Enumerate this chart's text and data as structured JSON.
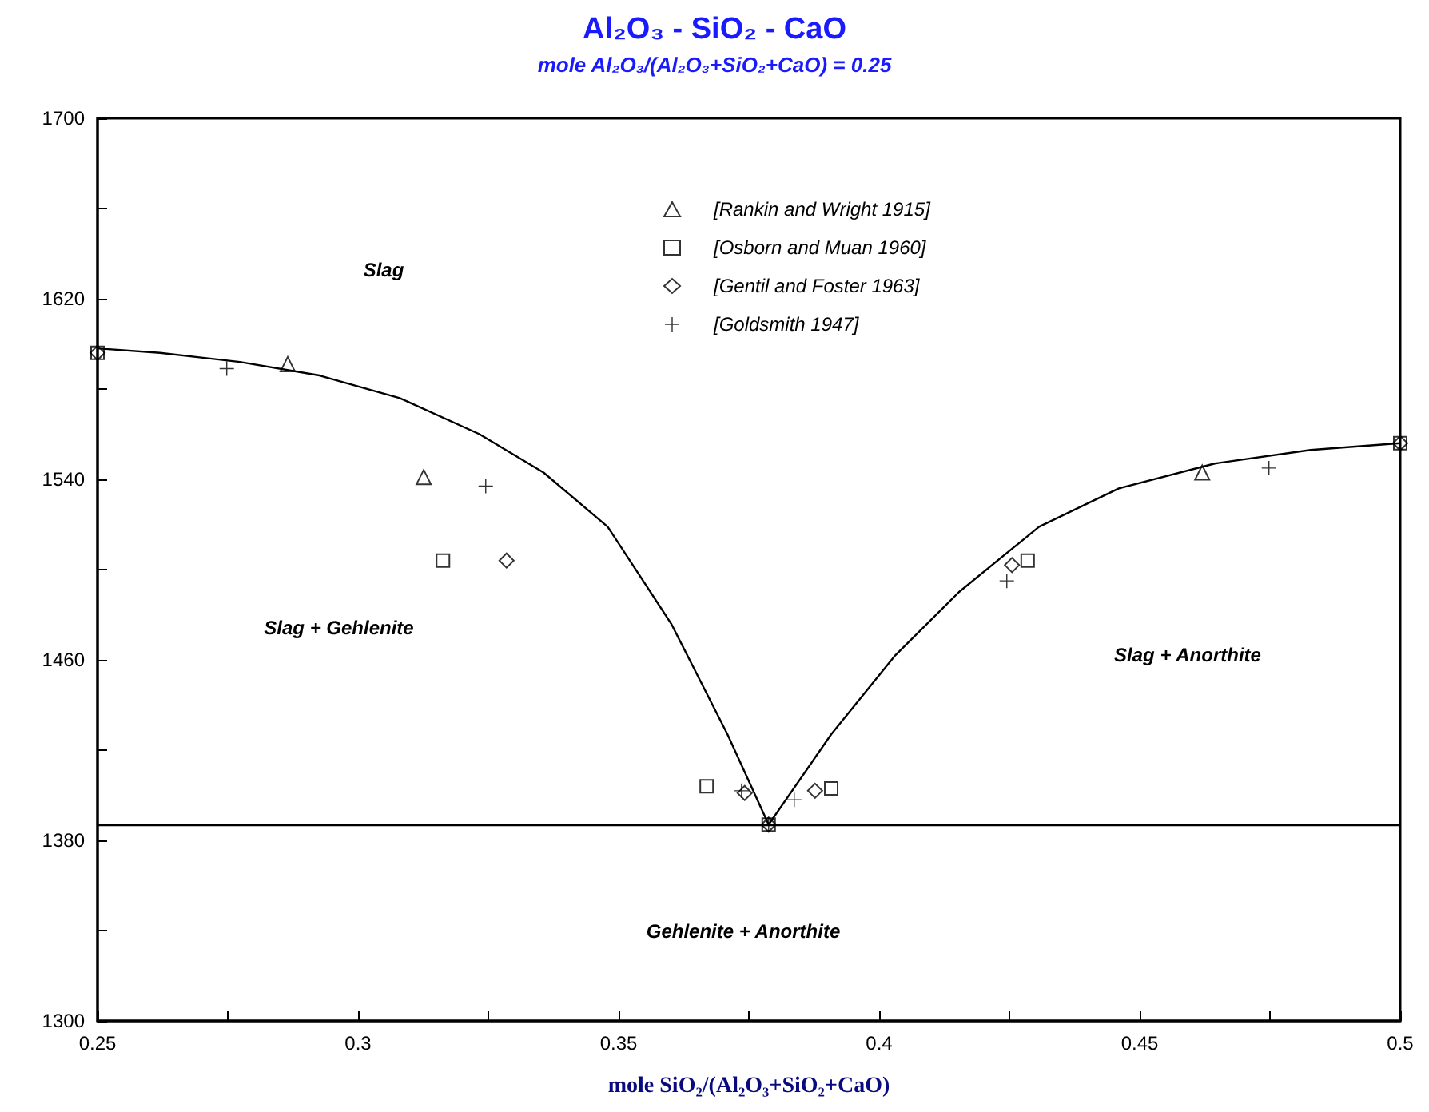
{
  "chart_data": {
    "type": "scatter",
    "title": "Al₂O₃ - SiO₂ - CaO",
    "subtitle": "mole Al₂O₃/(Al₂O₃+SiO₂+CaO) = 0.25",
    "xlabel": "mole SiO₂/(Al₂O₃+SiO₂+CaO)",
    "xlim": [
      0.25,
      0.5
    ],
    "xticks": [
      0.25,
      {
        "value": 0.275,
        "label": null
      },
      0.3,
      {
        "value": 0.325,
        "label": null
      },
      0.35,
      {
        "value": 0.375,
        "label": null
      },
      0.4,
      {
        "value": 0.425,
        "label": null
      },
      0.45,
      {
        "value": 0.475,
        "label": null
      },
      0.5
    ],
    "ylim": [
      1300,
      1700
    ],
    "yticks": [
      1300,
      {
        "value": 1340,
        "label": null
      },
      1380,
      {
        "value": 1420,
        "label": null
      },
      1460,
      {
        "value": 1500,
        "label": null
      },
      1540,
      {
        "value": 1580,
        "label": null
      },
      1620,
      {
        "value": 1660,
        "label": null
      },
      1700
    ],
    "grid": false,
    "legend": "top",
    "series": [
      {
        "type": "line",
        "marker": "none",
        "color": "#000000",
        "x": [
          0.25,
          0.262,
          0.2773,
          0.2926,
          0.308,
          0.3233,
          0.3356,
          0.3479,
          0.3601,
          0.3709,
          0.3788,
          0.3908,
          0.4031,
          0.4153,
          0.4307,
          0.446,
          0.4644,
          0.4828,
          0.5
        ],
        "values": [
          1598,
          1596,
          1592,
          1586,
          1576,
          1560,
          1543,
          1519,
          1476,
          1427,
          1387,
          1427,
          1462,
          1490,
          1519,
          1536,
          1547,
          1553,
          1556
        ]
      },
      {
        "name": "[Rankin and Wright 1915]",
        "marker": "triangle",
        "color": "#000000",
        "x": [
          0.2865,
          0.3126,
          0.462
        ],
        "values": [
          1591,
          1541,
          1543
        ]
      },
      {
        "name": "[Osborn and Muan 1960]",
        "marker": "square",
        "color": "#000000",
        "x": [
          0.3163,
          0.3669,
          0.3908,
          0.4285,
          0.3788,
          0.25,
          0.5
        ],
        "values": [
          1504,
          1404,
          1403,
          1504,
          1387,
          1596,
          1556
        ]
      },
      {
        "name": "[Gentil and Foster 1963]",
        "marker": "diamond",
        "color": "#000000",
        "x": [
          0.3285,
          0.3742,
          0.3877,
          0.4255,
          0.3788,
          0.25,
          0.5
        ],
        "values": [
          1504,
          1401,
          1402,
          1502,
          1387,
          1596,
          1556
        ]
      },
      {
        "name": "[Goldsmith 1947]",
        "marker": "cross",
        "color": "#000000",
        "x": [
          0.2748,
          0.3245,
          0.3736,
          0.3788,
          0.3837,
          0.4245,
          0.4748
        ],
        "values": [
          1589,
          1537,
          1402,
          1387,
          1398,
          1495,
          1545
        ]
      }
    ],
    "ref_lines": [
      {
        "axis": "y",
        "value": 1387,
        "label": null,
        "color": "#000000"
      }
    ],
    "annotations": [
      "Slag",
      "Slag + Gehlenite",
      "Slag + Anorthite",
      "Gehlenite + Anorthite"
    ]
  }
}
